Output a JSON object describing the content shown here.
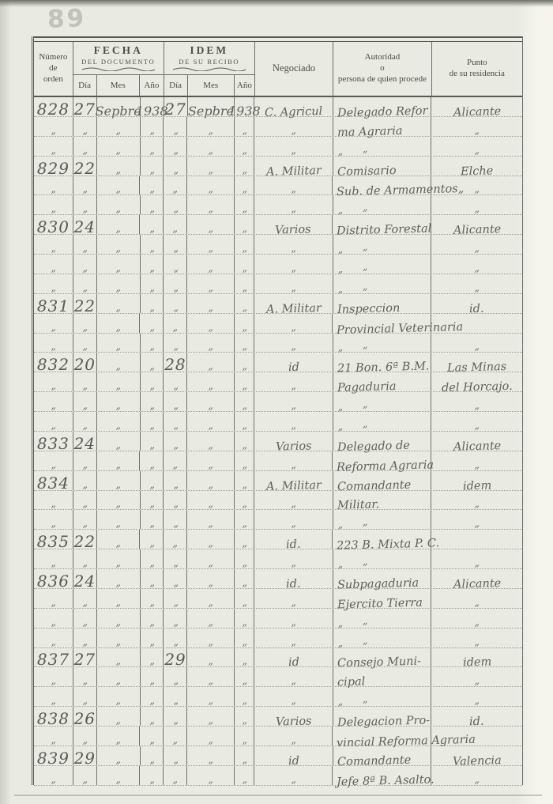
{
  "page": {
    "stamp": "89"
  },
  "colors": {
    "paper": "#e9eae1",
    "line_dark": "#565950",
    "line_mid": "#6b6e66",
    "ruling_dotted": "#9da093",
    "pencil_ink": "#5f635b",
    "header_ink": "#4a4e46"
  },
  "table": {
    "header": {
      "numero": [
        "Número",
        "de",
        "orden"
      ],
      "fecha": {
        "title": "FECHA",
        "subtitle": "DEL DOCUMENTO"
      },
      "idem": {
        "title": "IDEM",
        "subtitle": "DE SU RECIBO"
      },
      "sub": [
        "Día",
        "Mes",
        "Año"
      ],
      "negociado": "Negociado",
      "autoridad": [
        "Autoridad",
        "o",
        "persona de quien procede"
      ],
      "residencia": [
        "Punto",
        "de su residencia"
      ]
    },
    "rows": [
      [
        "828",
        "27",
        "Sepbre",
        "1938",
        "27",
        "Sepbre",
        "1938",
        "C. Agricul",
        "Delegado Refor",
        "Alicante"
      ],
      [
        "„",
        "„",
        "„",
        "„",
        "„",
        "„",
        "„",
        "„",
        "ma Agraria",
        "„"
      ],
      [
        "„",
        "„",
        "„",
        "„",
        "„",
        "„",
        "„",
        "„",
        "„      „",
        "„"
      ],
      [
        "829",
        "22",
        "„",
        "„",
        "„",
        "„",
        "„",
        "A. Militar",
        "Comisario",
        "Elche"
      ],
      [
        "„",
        "„",
        "„",
        "„",
        "„",
        "„",
        "„",
        "„",
        "Sub. de Armamentos„",
        "„"
      ],
      [
        "„",
        "„",
        "„",
        "„",
        "„",
        "„",
        "„",
        "„",
        "„      „",
        "„"
      ],
      [
        "830",
        "24",
        "„",
        "„",
        "„",
        "„",
        "„",
        "Varios",
        "Distrito Forestal",
        "Alicante"
      ],
      [
        "„",
        "„",
        "„",
        "„",
        "„",
        "„",
        "„",
        "„",
        "„      „",
        "„"
      ],
      [
        "„",
        "„",
        "„",
        "„",
        "„",
        "„",
        "„",
        "„",
        "„      „",
        "„"
      ],
      [
        "„",
        "„",
        "„",
        "„",
        "„",
        "„",
        "„",
        "„",
        "„      „",
        "„"
      ],
      [
        "831",
        "22",
        "„",
        "„",
        "„",
        "„",
        "„",
        "A. Militar",
        "Inspeccion",
        "id."
      ],
      [
        "„",
        "„",
        "„",
        "„",
        "„",
        "„",
        "„",
        "„",
        "Provincial Veterinaria",
        ""
      ],
      [
        "„",
        "„",
        "„",
        "„",
        "„",
        "„",
        "„",
        "„",
        "„      „",
        "„"
      ],
      [
        "832",
        "20",
        "„",
        "„",
        "28",
        "„",
        "„",
        "id",
        "21 Bon. 6ª B.M.",
        "Las Minas"
      ],
      [
        "„",
        "„",
        "„",
        "„",
        "„",
        "„",
        "„",
        "„",
        "Pagaduria",
        "del Horcajo."
      ],
      [
        "„",
        "„",
        "„",
        "„",
        "„",
        "„",
        "„",
        "„",
        "„      „",
        "„"
      ],
      [
        "„",
        "„",
        "„",
        "„",
        "„",
        "„",
        "„",
        "„",
        "„      „",
        "„"
      ],
      [
        "833",
        "24",
        "„",
        "„",
        "„",
        "„",
        "„",
        "Varios",
        "Delegado de",
        "Alicante"
      ],
      [
        "„",
        "„",
        "„",
        "„",
        "„",
        "„",
        "„",
        "„",
        "Reforma Agraria",
        "„"
      ],
      [
        "834",
        "„",
        "„",
        "„",
        "„",
        "„",
        "„",
        "A. Militar",
        "Comandante",
        "idem"
      ],
      [
        "„",
        "„",
        "„",
        "„",
        "„",
        "„",
        "„",
        "„",
        "Militar.",
        "„"
      ],
      [
        "„",
        "„",
        "„",
        "„",
        "„",
        "„",
        "„",
        "„",
        "„      „",
        "„"
      ],
      [
        "835",
        "22",
        "„",
        "„",
        "„",
        "„",
        "„",
        "id.",
        "223 B. Mixta P. C.",
        ""
      ],
      [
        "„",
        "„",
        "„",
        "„",
        "„",
        "„",
        "„",
        "„",
        "„      „",
        "„"
      ],
      [
        "836",
        "24",
        "„",
        "„",
        "„",
        "„",
        "„",
        "id.",
        "Subpagaduria",
        "Alicante"
      ],
      [
        "„",
        "„",
        "„",
        "„",
        "„",
        "„",
        "„",
        "„",
        "Ejercito Tierra",
        "„"
      ],
      [
        "„",
        "„",
        "„",
        "„",
        "„",
        "„",
        "„",
        "„",
        "„      „",
        "„"
      ],
      [
        "„",
        "„",
        "„",
        "„",
        "„",
        "„",
        "„",
        "„",
        "„      „",
        "„"
      ],
      [
        "837",
        "27",
        "„",
        "„",
        "29",
        "„",
        "„",
        "id",
        "Consejo Muni-",
        "idem"
      ],
      [
        "„",
        "„",
        "„",
        "„",
        "„",
        "„",
        "„",
        "„",
        "cipal",
        "„"
      ],
      [
        "„",
        "„",
        "„",
        "„",
        "„",
        "„",
        "„",
        "„",
        "„      „",
        "„"
      ],
      [
        "838",
        "26",
        "„",
        "„",
        "„",
        "„",
        "„",
        "Varios",
        "Delegacion Pro-",
        "id."
      ],
      [
        "„",
        "„",
        "„",
        "„",
        "„",
        "„",
        "„",
        "„",
        "vincial Reforma Agraria",
        ""
      ],
      [
        "839",
        "29",
        "„",
        "„",
        "„",
        "„",
        "„",
        "id",
        "Comandante",
        "Valencia"
      ],
      [
        "„",
        "„",
        "„",
        "„",
        "„",
        "„",
        "„",
        "„",
        "Jefe 8ª B. Asalto.",
        "„"
      ]
    ]
  }
}
